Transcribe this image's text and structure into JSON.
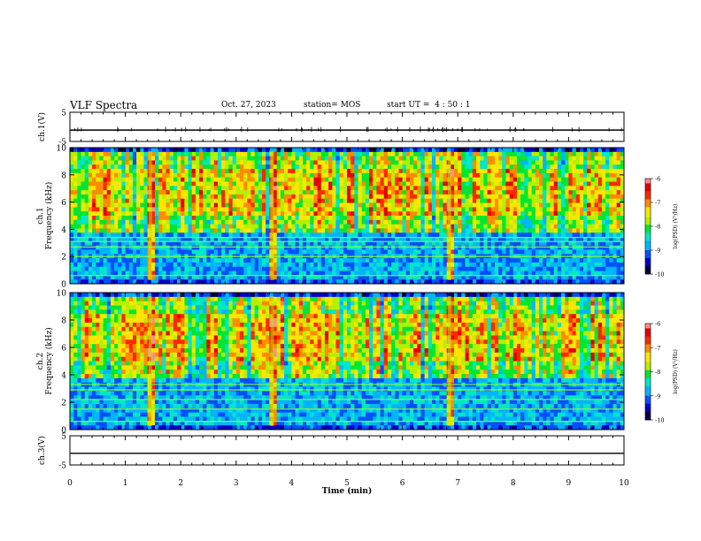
{
  "header": {
    "title": "VLF Spectra",
    "date": "Oct. 27, 2023",
    "station": "station= MOS",
    "start": "start UT =  4 : 50 : 1"
  },
  "colors": {
    "colormap": [
      "#00003c",
      "#0000c8",
      "#0050ff",
      "#00b4ff",
      "#00e6c8",
      "#00e632",
      "#b4f000",
      "#ffe600",
      "#ff8c00",
      "#ff2800",
      "#e60000",
      "#ff8c8c",
      "#ffffff"
    ]
  },
  "chart_data": [
    {
      "id": "ch1-waveform",
      "type": "line",
      "ylabel": "ch.1(V)",
      "ylim": [
        -5,
        5
      ],
      "yticks": [
        "5",
        "-5"
      ],
      "xlim": [
        0,
        10
      ],
      "trace_level": -1.1,
      "noise": "small spikes around -1 V"
    },
    {
      "id": "ch1-spectrogram",
      "type": "heatmap",
      "ylabel_line1": "ch.1",
      "ylabel_line2": "Frequency (kHz)",
      "ylim": [
        0,
        10
      ],
      "yticks": [
        "0",
        "2",
        "4",
        "6",
        "8",
        "10"
      ],
      "xlim": [
        0,
        10
      ],
      "colorbar": {
        "label": "log(PSD) (V²/Hz)",
        "range": [
          -10,
          -6
        ],
        "ticks": [
          "-6",
          "-7",
          "-8",
          "-9",
          "-10"
        ]
      },
      "horizontal_lines_khz": [
        0.6,
        2.0,
        2.7,
        3.1,
        3.4
      ],
      "broadband_bursts_min": [
        1.45,
        3.65,
        6.85
      ]
    },
    {
      "id": "ch2-spectrogram",
      "type": "heatmap",
      "ylabel_line1": "ch.2",
      "ylabel_line2": "Frequency (kHz)",
      "ylim": [
        0,
        10
      ],
      "yticks": [
        "0",
        "2",
        "4",
        "6",
        "8",
        "10"
      ],
      "xlim": [
        0,
        10
      ],
      "colorbar": {
        "label": "log(PSD) (V²/Hz)",
        "range": [
          -10,
          -6
        ],
        "ticks": [
          "-6",
          "-7",
          "-8",
          "-9",
          "-10"
        ]
      },
      "horizontal_lines_khz": [
        0.6,
        1.5,
        2.2,
        2.9,
        3.3
      ],
      "broadband_bursts_min": [
        1.45,
        3.65,
        6.85
      ]
    },
    {
      "id": "ch3-waveform",
      "type": "line",
      "ylabel": "ch.3(V)",
      "ylim": [
        -5,
        5
      ],
      "yticks": [
        "5",
        "-5"
      ],
      "xlim": [
        0,
        10
      ],
      "trace_level": -1.0,
      "noise": "flat"
    }
  ],
  "x_axis": {
    "label": "Time (min)",
    "ticks": [
      "0",
      "1",
      "2",
      "3",
      "4",
      "5",
      "6",
      "7",
      "8",
      "9",
      "10"
    ]
  }
}
